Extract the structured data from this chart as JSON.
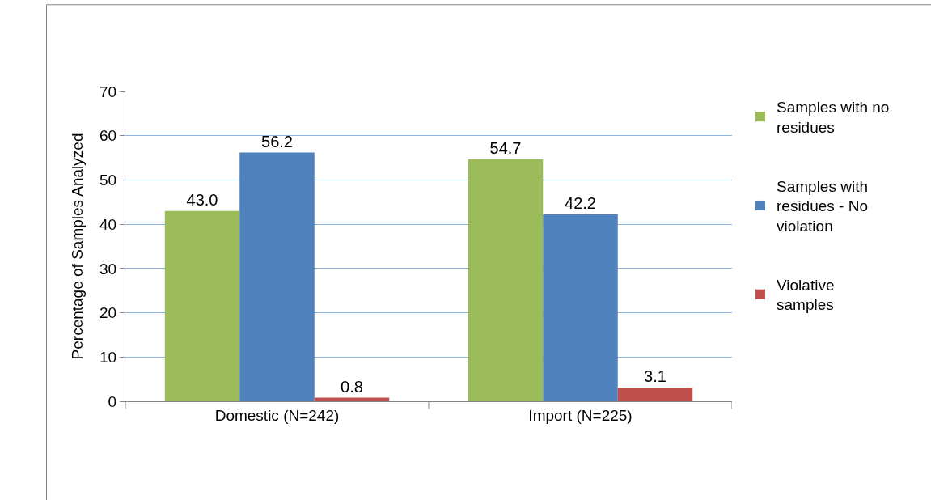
{
  "chart_data": {
    "type": "bar",
    "ylabel": "Percentage of Samples Analyzed",
    "categories": [
      "Domestic (N=242)",
      "Import (N=225)"
    ],
    "series": [
      {
        "name": "Samples with no residues",
        "color": "#9bbb59",
        "values": [
          43.0,
          54.7
        ],
        "value_labels": [
          "43.0",
          "54.7"
        ]
      },
      {
        "name": "Samples with residues - No violation",
        "color": "#4f81bd",
        "values": [
          56.2,
          42.2
        ],
        "value_labels": [
          "56.2",
          "42.2"
        ]
      },
      {
        "name": "Violative samples",
        "color": "#c0504d",
        "values": [
          0.8,
          3.1
        ],
        "value_labels": [
          "0.8",
          "3.1"
        ]
      }
    ],
    "ylim": [
      0,
      70
    ],
    "yticks": [
      0,
      10,
      20,
      30,
      40,
      50,
      60,
      70
    ],
    "grid": "y",
    "legend": "right"
  }
}
